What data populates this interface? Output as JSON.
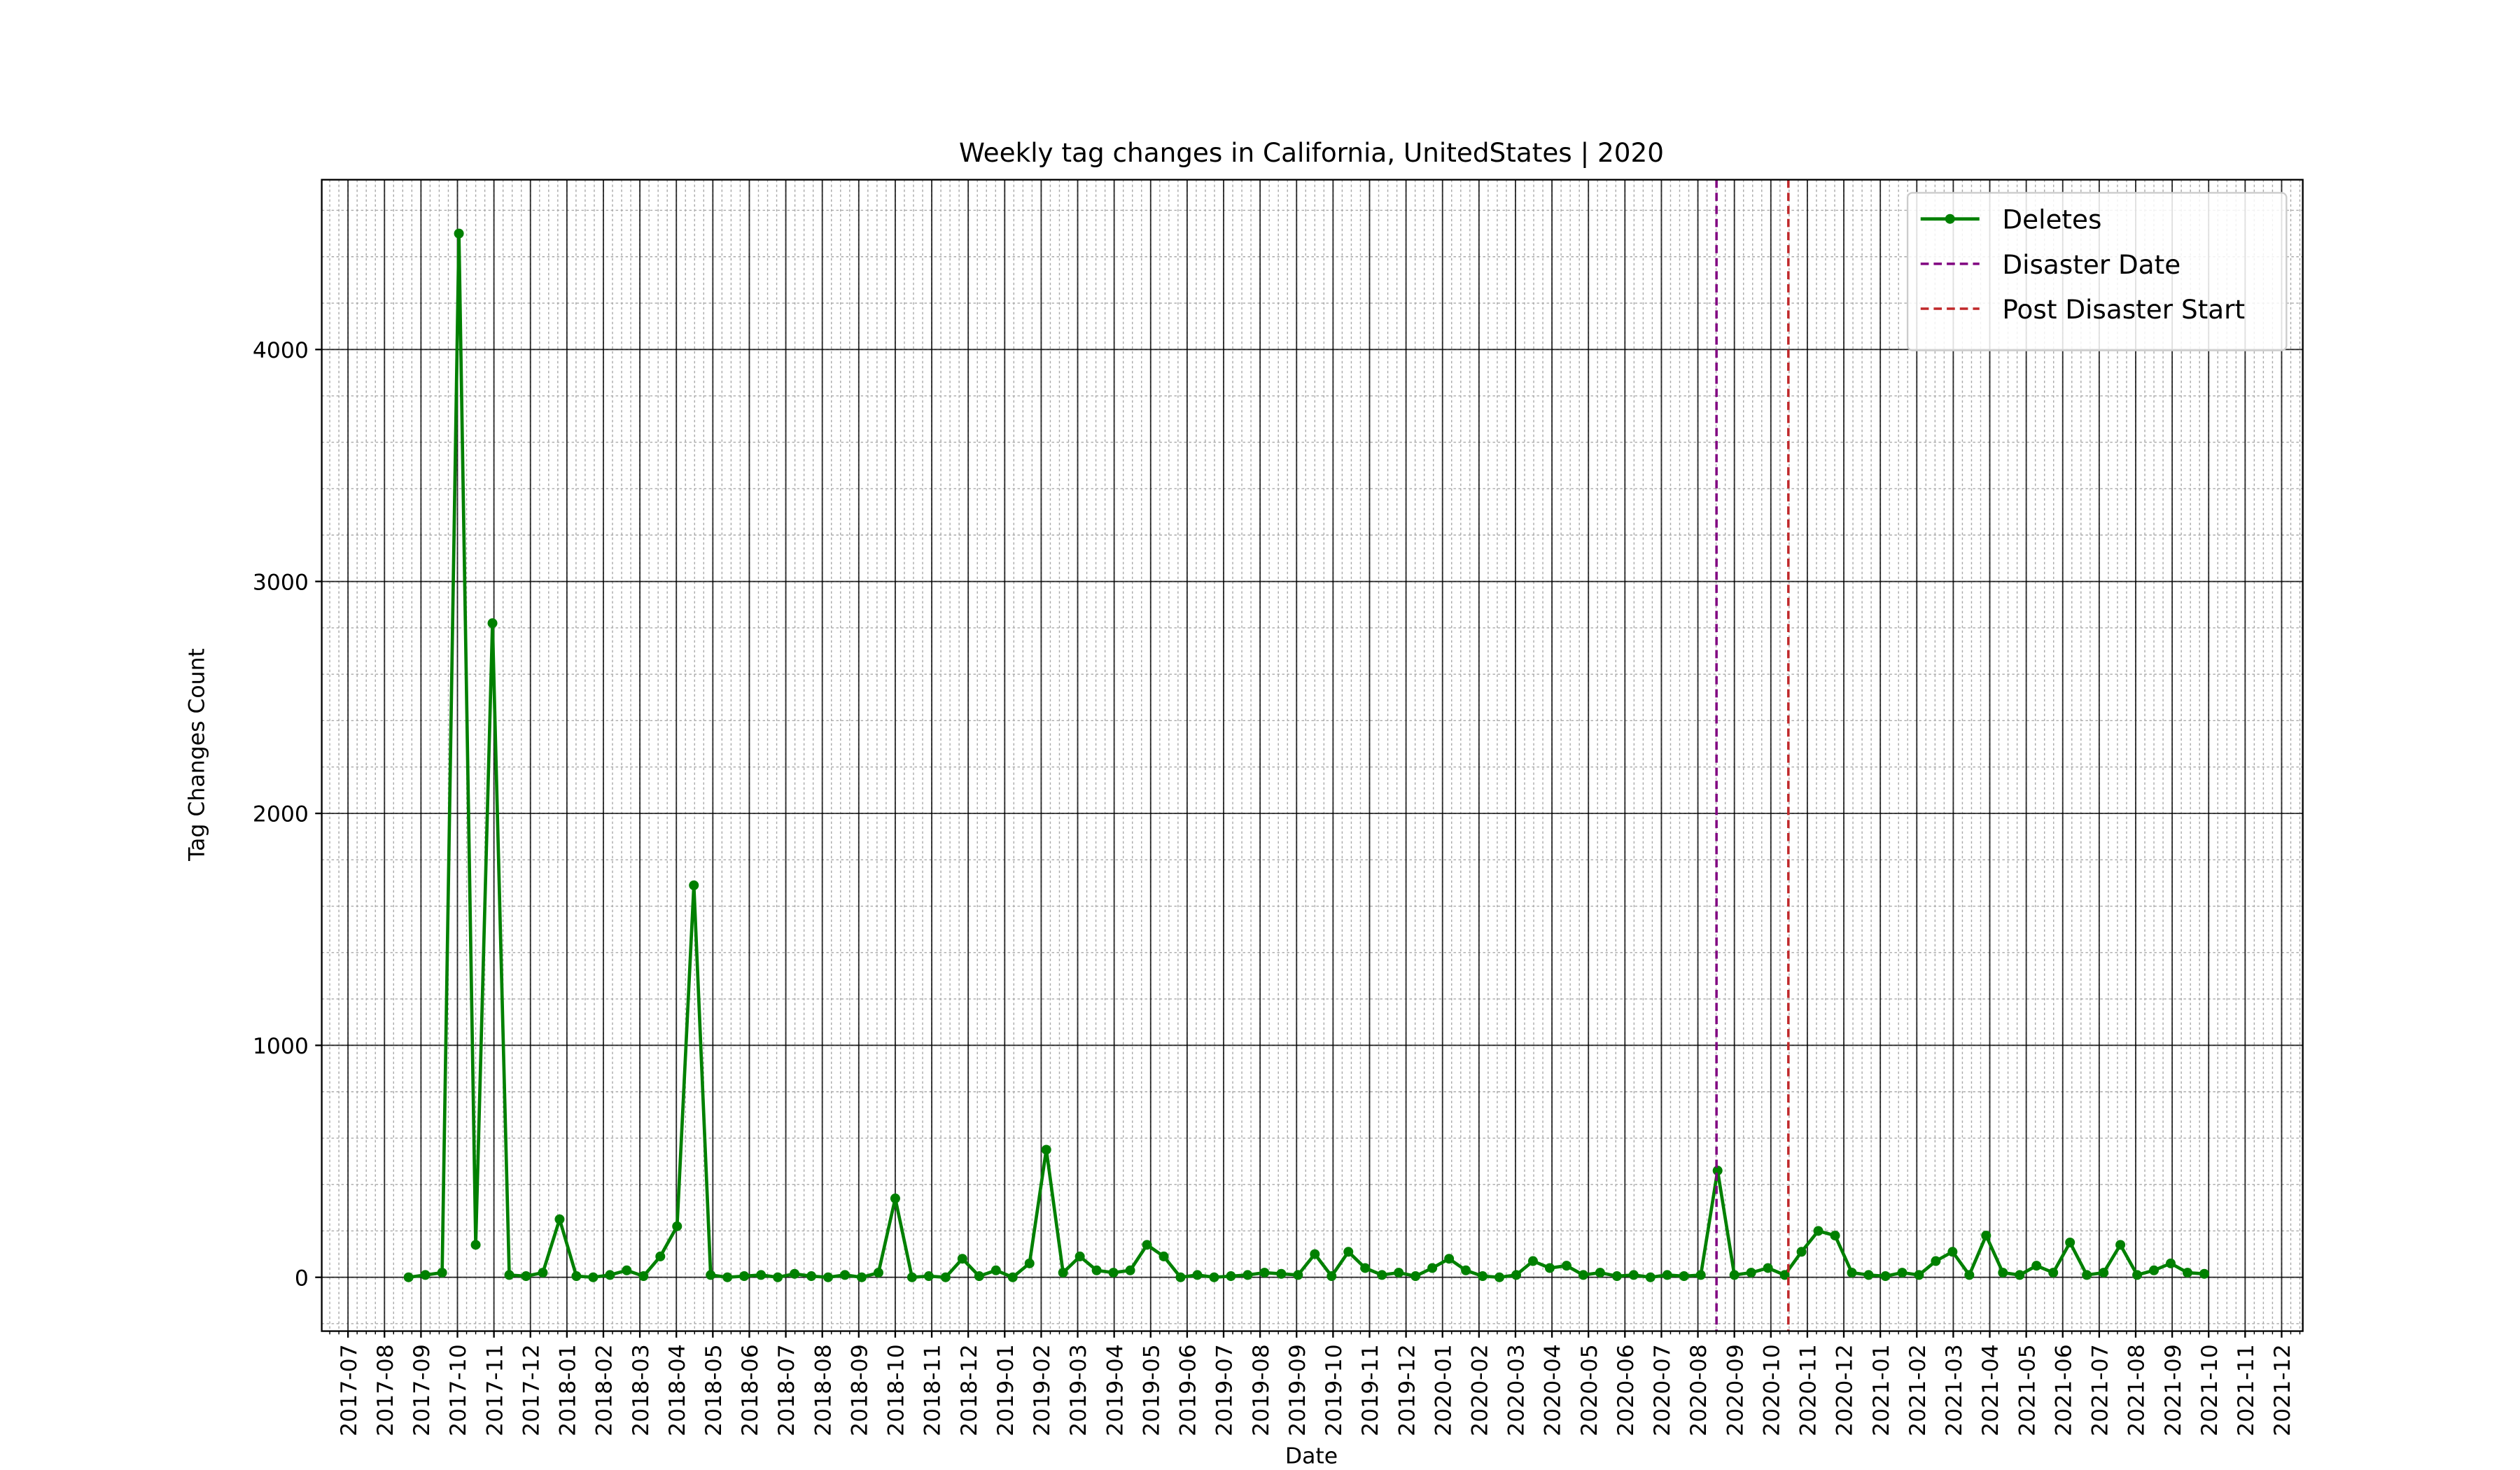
{
  "chart_data": {
    "type": "line",
    "title": "Weekly tag changes in California, UnitedStates | 2020",
    "xlabel": "Date",
    "ylabel": "Tag Changes Count",
    "x": [
      1.66,
      2.12,
      2.58,
      3.04,
      3.5,
      3.96,
      4.42,
      4.88,
      5.34,
      5.8,
      6.26,
      6.72,
      7.18,
      7.64,
      8.1,
      8.56,
      9.02,
      9.48,
      9.94,
      10.4,
      10.86,
      11.32,
      11.78,
      12.24,
      12.7,
      13.16,
      13.62,
      14.08,
      14.54,
      15.0,
      15.46,
      15.92,
      16.38,
      16.84,
      17.3,
      17.76,
      18.22,
      18.68,
      19.14,
      19.6,
      20.06,
      20.52,
      20.98,
      21.44,
      21.9,
      22.36,
      22.82,
      23.28,
      23.74,
      24.2,
      24.66,
      25.12,
      25.58,
      26.04,
      26.5,
      26.96,
      27.42,
      27.88,
      28.34,
      28.8,
      29.26,
      29.72,
      30.18,
      30.64,
      31.1,
      31.56,
      32.02,
      32.48,
      32.94,
      33.4,
      33.86,
      34.32,
      34.78,
      35.24,
      35.7,
      36.16,
      36.62,
      37.08,
      37.54,
      38.0,
      38.46,
      38.92,
      39.38,
      39.84,
      40.3,
      40.76,
      41.22,
      41.68,
      42.14,
      42.6,
      43.06,
      43.52,
      43.98,
      44.44,
      44.9,
      45.36,
      45.82,
      46.28,
      46.74,
      47.2,
      47.66,
      48.12,
      48.58,
      49.04,
      49.5,
      49.96,
      50.42,
      50.88
    ],
    "series": [
      {
        "name": "Deletes",
        "color": "#008000",
        "values": [
          0,
          10,
          20,
          4500,
          140,
          2820,
          10,
          5,
          20,
          250,
          5,
          0,
          10,
          30,
          5,
          90,
          220,
          1690,
          10,
          0,
          5,
          10,
          0,
          15,
          5,
          0,
          10,
          0,
          20,
          340,
          0,
          5,
          0,
          80,
          5,
          30,
          0,
          60,
          550,
          20,
          90,
          30,
          20,
          30,
          140,
          90,
          0,
          10,
          0,
          5,
          10,
          20,
          15,
          10,
          100,
          5,
          110,
          40,
          10,
          20,
          5,
          40,
          80,
          30,
          5,
          0,
          10,
          70,
          40,
          50,
          10,
          20,
          5,
          10,
          0,
          10,
          5,
          10,
          460,
          10,
          20,
          40,
          10,
          110,
          200,
          180,
          20,
          10,
          5,
          20,
          10,
          70,
          110,
          10,
          180,
          20,
          10,
          50,
          20,
          150,
          10,
          20,
          140,
          10,
          30,
          60,
          20,
          15
        ]
      }
    ],
    "vlines": [
      {
        "name": "Disaster Date",
        "color": "#800080",
        "x": 37.51
      },
      {
        "name": "Post Disaster Start",
        "color": "#c0282a",
        "x": 39.48
      }
    ],
    "xlim": [
      -0.72,
      53.58
    ],
    "ylim": [
      -232,
      4732
    ],
    "yticks": [
      0,
      1000,
      2000,
      3000,
      4000
    ],
    "xticks": [
      {
        "value": 0,
        "label": "2017-07"
      },
      {
        "value": 1,
        "label": "2017-08"
      },
      {
        "value": 2,
        "label": "2017-09"
      },
      {
        "value": 3,
        "label": "2017-10"
      },
      {
        "value": 4,
        "label": "2017-11"
      },
      {
        "value": 5,
        "label": "2017-12"
      },
      {
        "value": 6,
        "label": "2018-01"
      },
      {
        "value": 7,
        "label": "2018-02"
      },
      {
        "value": 8,
        "label": "2018-03"
      },
      {
        "value": 9,
        "label": "2018-04"
      },
      {
        "value": 10,
        "label": "2018-05"
      },
      {
        "value": 11,
        "label": "2018-06"
      },
      {
        "value": 12,
        "label": "2018-07"
      },
      {
        "value": 13,
        "label": "2018-08"
      },
      {
        "value": 14,
        "label": "2018-09"
      },
      {
        "value": 15,
        "label": "2018-10"
      },
      {
        "value": 16,
        "label": "2018-11"
      },
      {
        "value": 17,
        "label": "2018-12"
      },
      {
        "value": 18,
        "label": "2019-01"
      },
      {
        "value": 19,
        "label": "2019-02"
      },
      {
        "value": 20,
        "label": "2019-03"
      },
      {
        "value": 21,
        "label": "2019-04"
      },
      {
        "value": 22,
        "label": "2019-05"
      },
      {
        "value": 23,
        "label": "2019-06"
      },
      {
        "value": 24,
        "label": "2019-07"
      },
      {
        "value": 25,
        "label": "2019-08"
      },
      {
        "value": 26,
        "label": "2019-09"
      },
      {
        "value": 27,
        "label": "2019-10"
      },
      {
        "value": 28,
        "label": "2019-11"
      },
      {
        "value": 29,
        "label": "2019-12"
      },
      {
        "value": 30,
        "label": "2020-01"
      },
      {
        "value": 31,
        "label": "2020-02"
      },
      {
        "value": 32,
        "label": "2020-03"
      },
      {
        "value": 33,
        "label": "2020-04"
      },
      {
        "value": 34,
        "label": "2020-05"
      },
      {
        "value": 35,
        "label": "2020-06"
      },
      {
        "value": 36,
        "label": "2020-07"
      },
      {
        "value": 37,
        "label": "2020-08"
      },
      {
        "value": 38,
        "label": "2020-09"
      },
      {
        "value": 39,
        "label": "2020-10"
      },
      {
        "value": 40,
        "label": "2020-11"
      },
      {
        "value": 41,
        "label": "2020-12"
      },
      {
        "value": 42,
        "label": "2021-01"
      },
      {
        "value": 43,
        "label": "2021-02"
      },
      {
        "value": 44,
        "label": "2021-03"
      },
      {
        "value": 45,
        "label": "2021-04"
      },
      {
        "value": 46,
        "label": "2021-05"
      },
      {
        "value": 47,
        "label": "2021-06"
      },
      {
        "value": 48,
        "label": "2021-07"
      },
      {
        "value": 49,
        "label": "2021-08"
      },
      {
        "value": 50,
        "label": "2021-09"
      },
      {
        "value": 51,
        "label": "2021-10"
      },
      {
        "value": 52,
        "label": "2021-11"
      },
      {
        "value": 53,
        "label": "2021-12"
      }
    ],
    "grid": true,
    "minor_grid": true,
    "legend": "upper right"
  }
}
